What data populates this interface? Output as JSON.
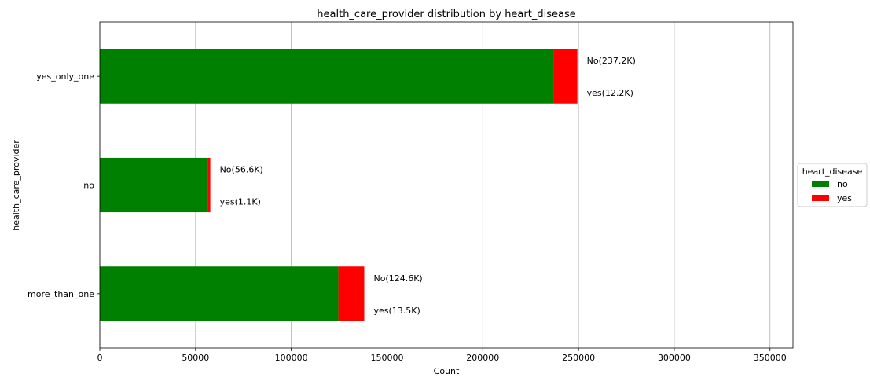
{
  "chart_data": {
    "type": "bar",
    "orientation": "horizontal",
    "stacked": true,
    "title": "health_care_provider distribution by heart_disease",
    "xlabel": "Count",
    "ylabel": "health_care_provider",
    "categories": [
      "more_than_one",
      "no",
      "yes_only_one"
    ],
    "series": [
      {
        "name": "no",
        "values": [
          124600,
          56600,
          237200
        ],
        "color": "#008000"
      },
      {
        "name": "yes",
        "values": [
          13500,
          1100,
          12200
        ],
        "color": "#ff0000"
      }
    ],
    "annotations": [
      {
        "category": "more_than_one",
        "lines": [
          "No(124.6K)",
          "yes(13.5K)"
        ]
      },
      {
        "category": "no",
        "lines": [
          "No(56.6K)",
          "yes(1.1K)"
        ]
      },
      {
        "category": "yes_only_one",
        "lines": [
          "No(237.2K)",
          "yes(12.2K)"
        ]
      }
    ],
    "xlim": [
      0,
      362000
    ],
    "xticks": [
      0,
      50000,
      100000,
      150000,
      200000,
      250000,
      300000,
      350000
    ],
    "grid": "x",
    "legend": {
      "title": "heart_disease",
      "placement": "right",
      "entries": [
        "no",
        "yes"
      ]
    }
  }
}
